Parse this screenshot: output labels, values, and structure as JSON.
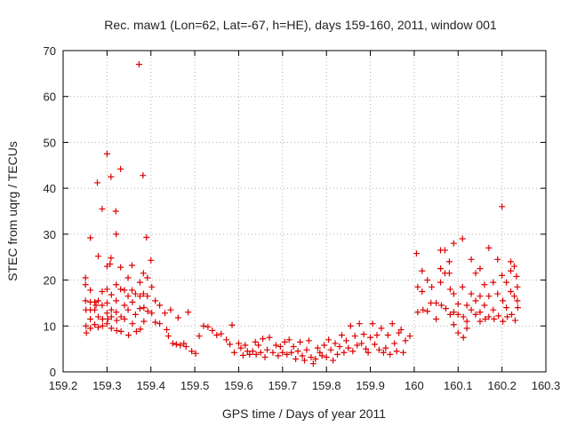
{
  "chart_data": {
    "type": "scatter",
    "title": "Rec. maw1 (Lon=62, Lat=-67, h=HE), days 159-160, 2011, window 001",
    "xlabel": "GPS time / Days of year 2011",
    "ylabel": "STEC from uqrg / TECUs",
    "xlim": [
      159.2,
      160.3
    ],
    "ylim": [
      0,
      70
    ],
    "xticks": [
      159.2,
      159.3,
      159.4,
      159.5,
      159.6,
      159.7,
      159.8,
      159.9,
      160,
      160.1,
      160.2,
      160.3
    ],
    "xtick_labels": [
      "159.2",
      "159.3",
      "159.4",
      "159.5",
      "159.6",
      "159.7",
      "159.8",
      "159.9",
      "160",
      "160.1",
      "160.2",
      "160.3"
    ],
    "yticks": [
      0,
      10,
      20,
      30,
      40,
      50,
      60,
      70
    ],
    "ytick_labels": [
      "0",
      "10",
      "20",
      "30",
      "40",
      "50",
      "60",
      "70"
    ],
    "grid": true,
    "marker": "+",
    "color": "#dd0000",
    "series": [
      {
        "points": [
          [
            159.251,
            20.5
          ],
          [
            159.251,
            19
          ],
          [
            159.251,
            15.5
          ],
          [
            159.252,
            13.5
          ],
          [
            159.252,
            10
          ],
          [
            159.253,
            8.5
          ],
          [
            159.262,
            29.2
          ],
          [
            159.262,
            17.8
          ],
          [
            159.262,
            15.2
          ],
          [
            159.262,
            13.5
          ],
          [
            159.262,
            11.5
          ],
          [
            159.262,
            9.5
          ],
          [
            159.272,
            15.2
          ],
          [
            159.272,
            13.5
          ],
          [
            159.272,
            10.3
          ],
          [
            159.275,
            14.5
          ],
          [
            159.278,
            41.2
          ],
          [
            159.28,
            25.2
          ],
          [
            159.28,
            15.5
          ],
          [
            159.28,
            12
          ],
          [
            159.28,
            9.7
          ],
          [
            159.289,
            35.5
          ],
          [
            159.289,
            17.5
          ],
          [
            159.289,
            14.5
          ],
          [
            159.29,
            11.5
          ],
          [
            159.29,
            10
          ],
          [
            159.3,
            47.5
          ],
          [
            159.3,
            23
          ],
          [
            159.3,
            18
          ],
          [
            159.3,
            15
          ],
          [
            159.3,
            12.8
          ],
          [
            159.3,
            10.5
          ],
          [
            159.302,
            11.5
          ],
          [
            159.307,
            23.5
          ],
          [
            159.309,
            42.5
          ],
          [
            159.309,
            24.8
          ],
          [
            159.31,
            16.8
          ],
          [
            159.31,
            13.5
          ],
          [
            159.31,
            12
          ],
          [
            159.31,
            9.5
          ],
          [
            159.32,
            35
          ],
          [
            159.321,
            30
          ],
          [
            159.321,
            19
          ],
          [
            159.321,
            15.5
          ],
          [
            159.321,
            13
          ],
          [
            159.322,
            11.2
          ],
          [
            159.322,
            9
          ],
          [
            159.331,
            44.2
          ],
          [
            159.331,
            22.8
          ],
          [
            159.331,
            18
          ],
          [
            159.332,
            12
          ],
          [
            159.332,
            8.8
          ],
          [
            159.34,
            17.8
          ],
          [
            159.34,
            14.5
          ],
          [
            159.34,
            11.5
          ],
          [
            159.348,
            20.5
          ],
          [
            159.348,
            16.5
          ],
          [
            159.348,
            13.5
          ],
          [
            159.349,
            8
          ],
          [
            159.357,
            23.2
          ],
          [
            159.357,
            17.8
          ],
          [
            159.358,
            15.2
          ],
          [
            159.358,
            10.5
          ],
          [
            159.365,
            17
          ],
          [
            159.365,
            12.5
          ],
          [
            159.367,
            8.8
          ],
          [
            159.373,
            67
          ],
          [
            159.375,
            19.5
          ],
          [
            159.375,
            16.5
          ],
          [
            159.375,
            13.8
          ],
          [
            159.376,
            9.3
          ],
          [
            159.382,
            42.8
          ],
          [
            159.383,
            21.5
          ],
          [
            159.383,
            17
          ],
          [
            159.384,
            14
          ],
          [
            159.384,
            11
          ],
          [
            159.39,
            29.3
          ],
          [
            159.392,
            20.5
          ],
          [
            159.392,
            16.5
          ],
          [
            159.393,
            13.2
          ],
          [
            159.4,
            24.3
          ],
          [
            159.402,
            18.5
          ],
          [
            159.402,
            12.8
          ],
          [
            159.41,
            15.5
          ],
          [
            159.41,
            10.8
          ],
          [
            159.42,
            14.5
          ],
          [
            159.42,
            10.5
          ],
          [
            159.432,
            12.8
          ],
          [
            159.436,
            9.2
          ],
          [
            159.44,
            7.8
          ],
          [
            159.445,
            13.5
          ],
          [
            159.45,
            6.2
          ],
          [
            159.458,
            6
          ],
          [
            159.462,
            11.8
          ],
          [
            159.467,
            5.8
          ],
          [
            159.475,
            6.2
          ],
          [
            159.48,
            5.5
          ],
          [
            159.485,
            13
          ],
          [
            159.493,
            4.5
          ],
          [
            159.502,
            4
          ],
          [
            159.51,
            7.8
          ],
          [
            159.52,
            10
          ],
          [
            159.53,
            9.8
          ],
          [
            159.54,
            9
          ],
          [
            159.55,
            8
          ],
          [
            159.56,
            8.3
          ],
          [
            159.572,
            7
          ],
          [
            159.58,
            6
          ],
          [
            159.585,
            10.2
          ],
          [
            159.59,
            4.2
          ],
          [
            159.6,
            6.2
          ],
          [
            159.605,
            5.2
          ],
          [
            159.61,
            3.6
          ],
          [
            159.615,
            5.8
          ],
          [
            159.62,
            4.5
          ],
          [
            159.625,
            3.8
          ],
          [
            159.632,
            4.5
          ],
          [
            159.638,
            6.5
          ],
          [
            159.64,
            3.8
          ],
          [
            159.645,
            5.8
          ],
          [
            159.65,
            4.2
          ],
          [
            159.655,
            7.2
          ],
          [
            159.66,
            3.2
          ],
          [
            159.665,
            4.8
          ],
          [
            159.67,
            7.5
          ],
          [
            159.678,
            4.2
          ],
          [
            159.685,
            5.8
          ],
          [
            159.69,
            3.5
          ],
          [
            159.695,
            5.5
          ],
          [
            159.7,
            4.2
          ],
          [
            159.705,
            6.5
          ],
          [
            159.71,
            3.8
          ],
          [
            159.715,
            7
          ],
          [
            159.72,
            4.2
          ],
          [
            159.725,
            5.5
          ],
          [
            159.73,
            2.8
          ],
          [
            159.735,
            4.5
          ],
          [
            159.74,
            6.5
          ],
          [
            159.745,
            3.5
          ],
          [
            159.75,
            2.5
          ],
          [
            159.755,
            4.8
          ],
          [
            159.76,
            6.8
          ],
          [
            159.765,
            3.2
          ],
          [
            159.77,
            1.8
          ],
          [
            159.775,
            2.8
          ],
          [
            159.78,
            5.2
          ],
          [
            159.785,
            4.2
          ],
          [
            159.79,
            3.5
          ],
          [
            159.795,
            5.8
          ],
          [
            159.8,
            3.2
          ],
          [
            159.805,
            7
          ],
          [
            159.81,
            4.8
          ],
          [
            159.815,
            2.5
          ],
          [
            159.82,
            6.2
          ],
          [
            159.825,
            3.8
          ],
          [
            159.83,
            5.5
          ],
          [
            159.835,
            8
          ],
          [
            159.84,
            4.2
          ],
          [
            159.845,
            6.8
          ],
          [
            159.85,
            5.2
          ],
          [
            159.855,
            10
          ],
          [
            159.86,
            4.5
          ],
          [
            159.865,
            7.8
          ],
          [
            159.87,
            5.8
          ],
          [
            159.875,
            10.5
          ],
          [
            159.88,
            6.2
          ],
          [
            159.885,
            8.2
          ],
          [
            159.89,
            5
          ],
          [
            159.895,
            4.2
          ],
          [
            159.9,
            7.5
          ],
          [
            159.905,
            10.5
          ],
          [
            159.91,
            6
          ],
          [
            159.915,
            8
          ],
          [
            159.92,
            4.8
          ],
          [
            159.925,
            9.5
          ],
          [
            159.93,
            4.2
          ],
          [
            159.935,
            5.2
          ],
          [
            159.94,
            8
          ],
          [
            159.945,
            3.8
          ],
          [
            159.95,
            10.5
          ],
          [
            159.955,
            6.2
          ],
          [
            159.96,
            4.5
          ],
          [
            159.965,
            8.5
          ],
          [
            159.97,
            9.2
          ],
          [
            159.975,
            4.2
          ],
          [
            159.98,
            6.8
          ],
          [
            159.99,
            7.8
          ],
          [
            160.005,
            25.8
          ],
          [
            160.008,
            18.5
          ],
          [
            160.008,
            13
          ],
          [
            160.018,
            22
          ],
          [
            160.018,
            17.5
          ],
          [
            160.02,
            13.5
          ],
          [
            160.03,
            20
          ],
          [
            160.03,
            13.2
          ],
          [
            160.038,
            15
          ],
          [
            160.04,
            18.5
          ],
          [
            160.05,
            11.5
          ],
          [
            160.05,
            15
          ],
          [
            160.06,
            26.5
          ],
          [
            160.06,
            22.5
          ],
          [
            160.06,
            19.5
          ],
          [
            160.062,
            14.5
          ],
          [
            160.07,
            26.5
          ],
          [
            160.07,
            21.5
          ],
          [
            160.072,
            13.8
          ],
          [
            160.08,
            24
          ],
          [
            160.08,
            21.5
          ],
          [
            160.082,
            18
          ],
          [
            160.082,
            12.5
          ],
          [
            160.09,
            28
          ],
          [
            160.09,
            17
          ],
          [
            160.09,
            13
          ],
          [
            160.09,
            10.3
          ],
          [
            160.1,
            14.8
          ],
          [
            160.1,
            12.5
          ],
          [
            160.1,
            8.5
          ],
          [
            160.11,
            29
          ],
          [
            160.11,
            18.5
          ],
          [
            160.112,
            12
          ],
          [
            160.112,
            7.5
          ],
          [
            160.12,
            14.5
          ],
          [
            160.12,
            11
          ],
          [
            160.12,
            9.5
          ],
          [
            160.13,
            24.5
          ],
          [
            160.13,
            17
          ],
          [
            160.13,
            13.5
          ],
          [
            160.14,
            21.5
          ],
          [
            160.14,
            15.5
          ],
          [
            160.14,
            12.5
          ],
          [
            160.15,
            22.5
          ],
          [
            160.15,
            16.5
          ],
          [
            160.15,
            13
          ],
          [
            160.15,
            11
          ],
          [
            160.16,
            19
          ],
          [
            160.16,
            14.5
          ],
          [
            160.162,
            11.5
          ],
          [
            160.17,
            27
          ],
          [
            160.17,
            16.5
          ],
          [
            160.17,
            12
          ],
          [
            160.18,
            19.5
          ],
          [
            160.18,
            13.5
          ],
          [
            160.182,
            11.5
          ],
          [
            160.19,
            24.5
          ],
          [
            160.19,
            17
          ],
          [
            160.192,
            12.2
          ],
          [
            160.2,
            36
          ],
          [
            160.2,
            21
          ],
          [
            160.202,
            15.5
          ],
          [
            160.202,
            11
          ],
          [
            160.21,
            19.5
          ],
          [
            160.21,
            14
          ],
          [
            160.212,
            12
          ],
          [
            160.22,
            24
          ],
          [
            160.22,
            22
          ],
          [
            160.22,
            17.5
          ],
          [
            160.222,
            12.5
          ],
          [
            160.228,
            23
          ],
          [
            160.228,
            16.5
          ],
          [
            160.23,
            11.2
          ],
          [
            160.233,
            20.8
          ],
          [
            160.235,
            18.5
          ],
          [
            160.235,
            15.5
          ],
          [
            160.236,
            14
          ]
        ]
      }
    ]
  }
}
